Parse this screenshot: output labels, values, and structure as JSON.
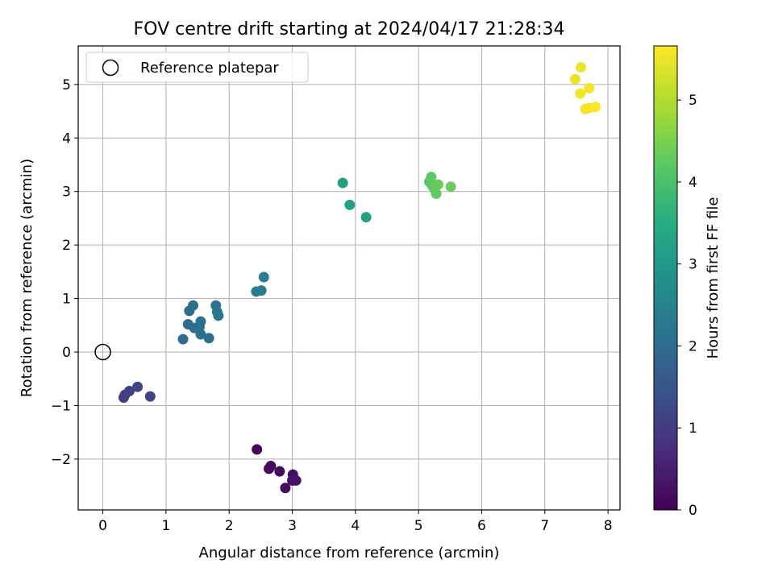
{
  "chart_data": {
    "type": "scatter",
    "title": "FOV centre drift starting at 2024/04/17 21:28:34",
    "xlabel": "Angular distance from reference (arcmin)",
    "ylabel": "Rotation from reference (arcmin)",
    "xlim": [
      -0.39,
      8.19
    ],
    "ylim": [
      -2.95,
      5.72
    ],
    "xticks": [
      0,
      1,
      2,
      3,
      4,
      5,
      6,
      7,
      8
    ],
    "yticks": [
      -2,
      -1,
      0,
      1,
      2,
      3,
      4,
      5
    ],
    "grid": true,
    "legend": {
      "placement": "upper-left",
      "entries": [
        "Reference platepar"
      ]
    },
    "reference_point": {
      "x": 0,
      "y": 0,
      "label": "Reference platepar"
    },
    "colorbar": {
      "label": "Hours from first FF file",
      "colormap": "viridis",
      "range": [
        0,
        5.66
      ],
      "ticks": [
        0,
        1,
        2,
        3,
        4,
        5
      ]
    },
    "points": [
      {
        "x": 2.44,
        "y": -1.82,
        "t": 0.05
      },
      {
        "x": 2.63,
        "y": -2.18,
        "t": 0.1
      },
      {
        "x": 2.66,
        "y": -2.13,
        "t": 0.13
      },
      {
        "x": 2.8,
        "y": -2.23,
        "t": 0.16
      },
      {
        "x": 2.89,
        "y": -2.54,
        "t": 0.2
      },
      {
        "x": 3.01,
        "y": -2.29,
        "t": 0.22
      },
      {
        "x": 3.0,
        "y": -2.4,
        "t": 0.25
      },
      {
        "x": 3.06,
        "y": -2.4,
        "t": 0.28
      },
      {
        "x": 0.33,
        "y": -0.85,
        "t": 1.0
      },
      {
        "x": 0.35,
        "y": -0.8,
        "t": 1.05
      },
      {
        "x": 0.42,
        "y": -0.73,
        "t": 1.08
      },
      {
        "x": 0.55,
        "y": -0.65,
        "t": 1.12
      },
      {
        "x": 0.75,
        "y": -0.83,
        "t": 1.15
      },
      {
        "x": 1.27,
        "y": 0.24,
        "t": 1.95
      },
      {
        "x": 1.35,
        "y": 0.52,
        "t": 1.98
      },
      {
        "x": 1.37,
        "y": 0.77,
        "t": 2.0
      },
      {
        "x": 1.43,
        "y": 0.87,
        "t": 2.02
      },
      {
        "x": 1.45,
        "y": 0.45,
        "t": 2.04
      },
      {
        "x": 1.53,
        "y": 0.47,
        "t": 2.06
      },
      {
        "x": 1.55,
        "y": 0.57,
        "t": 2.08
      },
      {
        "x": 1.55,
        "y": 0.33,
        "t": 2.1
      },
      {
        "x": 1.68,
        "y": 0.26,
        "t": 2.12
      },
      {
        "x": 1.79,
        "y": 0.87,
        "t": 2.15
      },
      {
        "x": 1.81,
        "y": 0.75,
        "t": 2.17
      },
      {
        "x": 1.83,
        "y": 0.68,
        "t": 2.19
      },
      {
        "x": 2.43,
        "y": 1.13,
        "t": 2.35
      },
      {
        "x": 2.51,
        "y": 1.15,
        "t": 2.38
      },
      {
        "x": 2.55,
        "y": 1.4,
        "t": 2.41
      },
      {
        "x": 3.8,
        "y": 3.16,
        "t": 3.15
      },
      {
        "x": 3.91,
        "y": 2.75,
        "t": 3.2
      },
      {
        "x": 4.17,
        "y": 2.52,
        "t": 3.25
      },
      {
        "x": 5.17,
        "y": 3.18,
        "t": 4.2
      },
      {
        "x": 5.2,
        "y": 3.27,
        "t": 4.22
      },
      {
        "x": 5.22,
        "y": 3.1,
        "t": 4.25
      },
      {
        "x": 5.25,
        "y": 3.05,
        "t": 4.27
      },
      {
        "x": 5.28,
        "y": 2.96,
        "t": 4.29
      },
      {
        "x": 5.31,
        "y": 3.13,
        "t": 4.31
      },
      {
        "x": 5.51,
        "y": 3.09,
        "t": 4.35
      },
      {
        "x": 7.48,
        "y": 5.1,
        "t": 5.5
      },
      {
        "x": 7.57,
        "y": 5.32,
        "t": 5.53
      },
      {
        "x": 7.56,
        "y": 4.83,
        "t": 5.56
      },
      {
        "x": 7.7,
        "y": 4.93,
        "t": 5.58
      },
      {
        "x": 7.64,
        "y": 4.54,
        "t": 5.6
      },
      {
        "x": 7.7,
        "y": 4.56,
        "t": 5.62
      },
      {
        "x": 7.8,
        "y": 4.58,
        "t": 5.64
      }
    ]
  }
}
